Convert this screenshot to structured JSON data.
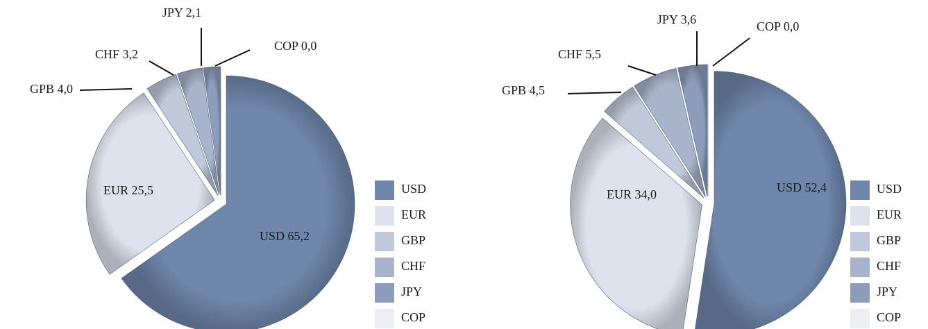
{
  "chart_data": [
    {
      "type": "pie",
      "categories": [
        "USD",
        "EUR",
        "GBP",
        "CHF",
        "JPY",
        "COP"
      ],
      "values": [
        65.2,
        25.5,
        4.0,
        3.2,
        2.1,
        0.0
      ],
      "value_labels": [
        "USD 65,2",
        "EUR 25,5",
        "GPB 4,0",
        "CHF 3,2",
        "JPY 2,1",
        "COP 0,0"
      ],
      "colors": [
        "#6f87ab",
        "#dde2ec",
        "#c0c9da",
        "#a7b4cb",
        "#8c9dbb",
        "#eceef4"
      ]
    },
    {
      "type": "pie",
      "categories": [
        "USD",
        "EUR",
        "GBP",
        "CHF",
        "JPY",
        "COP"
      ],
      "values": [
        52.4,
        34.0,
        4.5,
        5.5,
        3.6,
        0.0
      ],
      "value_labels": [
        "USD 52,4",
        "EUR 34,0",
        "GPB 4,5",
        "CHF 5,5",
        "JPY 3,6",
        "COP 0,0"
      ],
      "colors": [
        "#6f87ab",
        "#dde2ec",
        "#c0c9da",
        "#a7b4cb",
        "#8c9dbb",
        "#eceef4"
      ]
    }
  ]
}
